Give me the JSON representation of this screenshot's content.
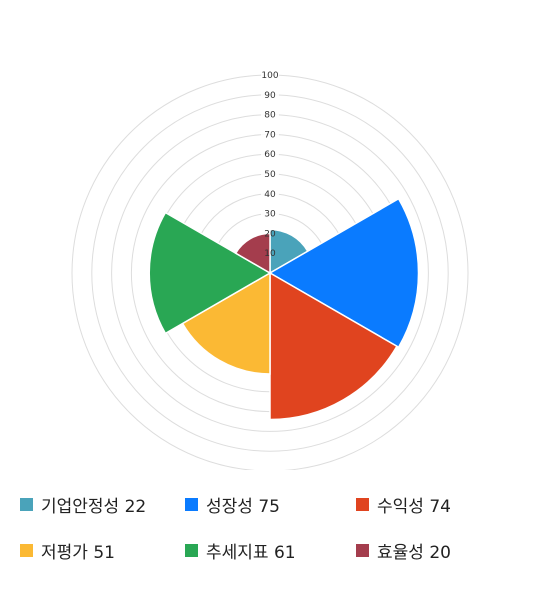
{
  "chart_data": {
    "type": "polar-area",
    "rlim": [
      0,
      100
    ],
    "rticks": [
      10,
      20,
      30,
      40,
      50,
      60,
      70,
      80,
      90,
      100
    ],
    "grid": true,
    "legend_position": "bottom",
    "series": [
      {
        "name": "기업안정성",
        "value": 22,
        "color": "#4aa3ba"
      },
      {
        "name": "성장성",
        "value": 75,
        "color": "#0a7bff"
      },
      {
        "name": "수익성",
        "value": 74,
        "color": "#e0441f"
      },
      {
        "name": "저평가",
        "value": 51,
        "color": "#fbb934"
      },
      {
        "name": "추세지표",
        "value": 61,
        "color": "#29a754"
      },
      {
        "name": "효율성",
        "value": 20,
        "color": "#a43d4d"
      }
    ]
  }
}
